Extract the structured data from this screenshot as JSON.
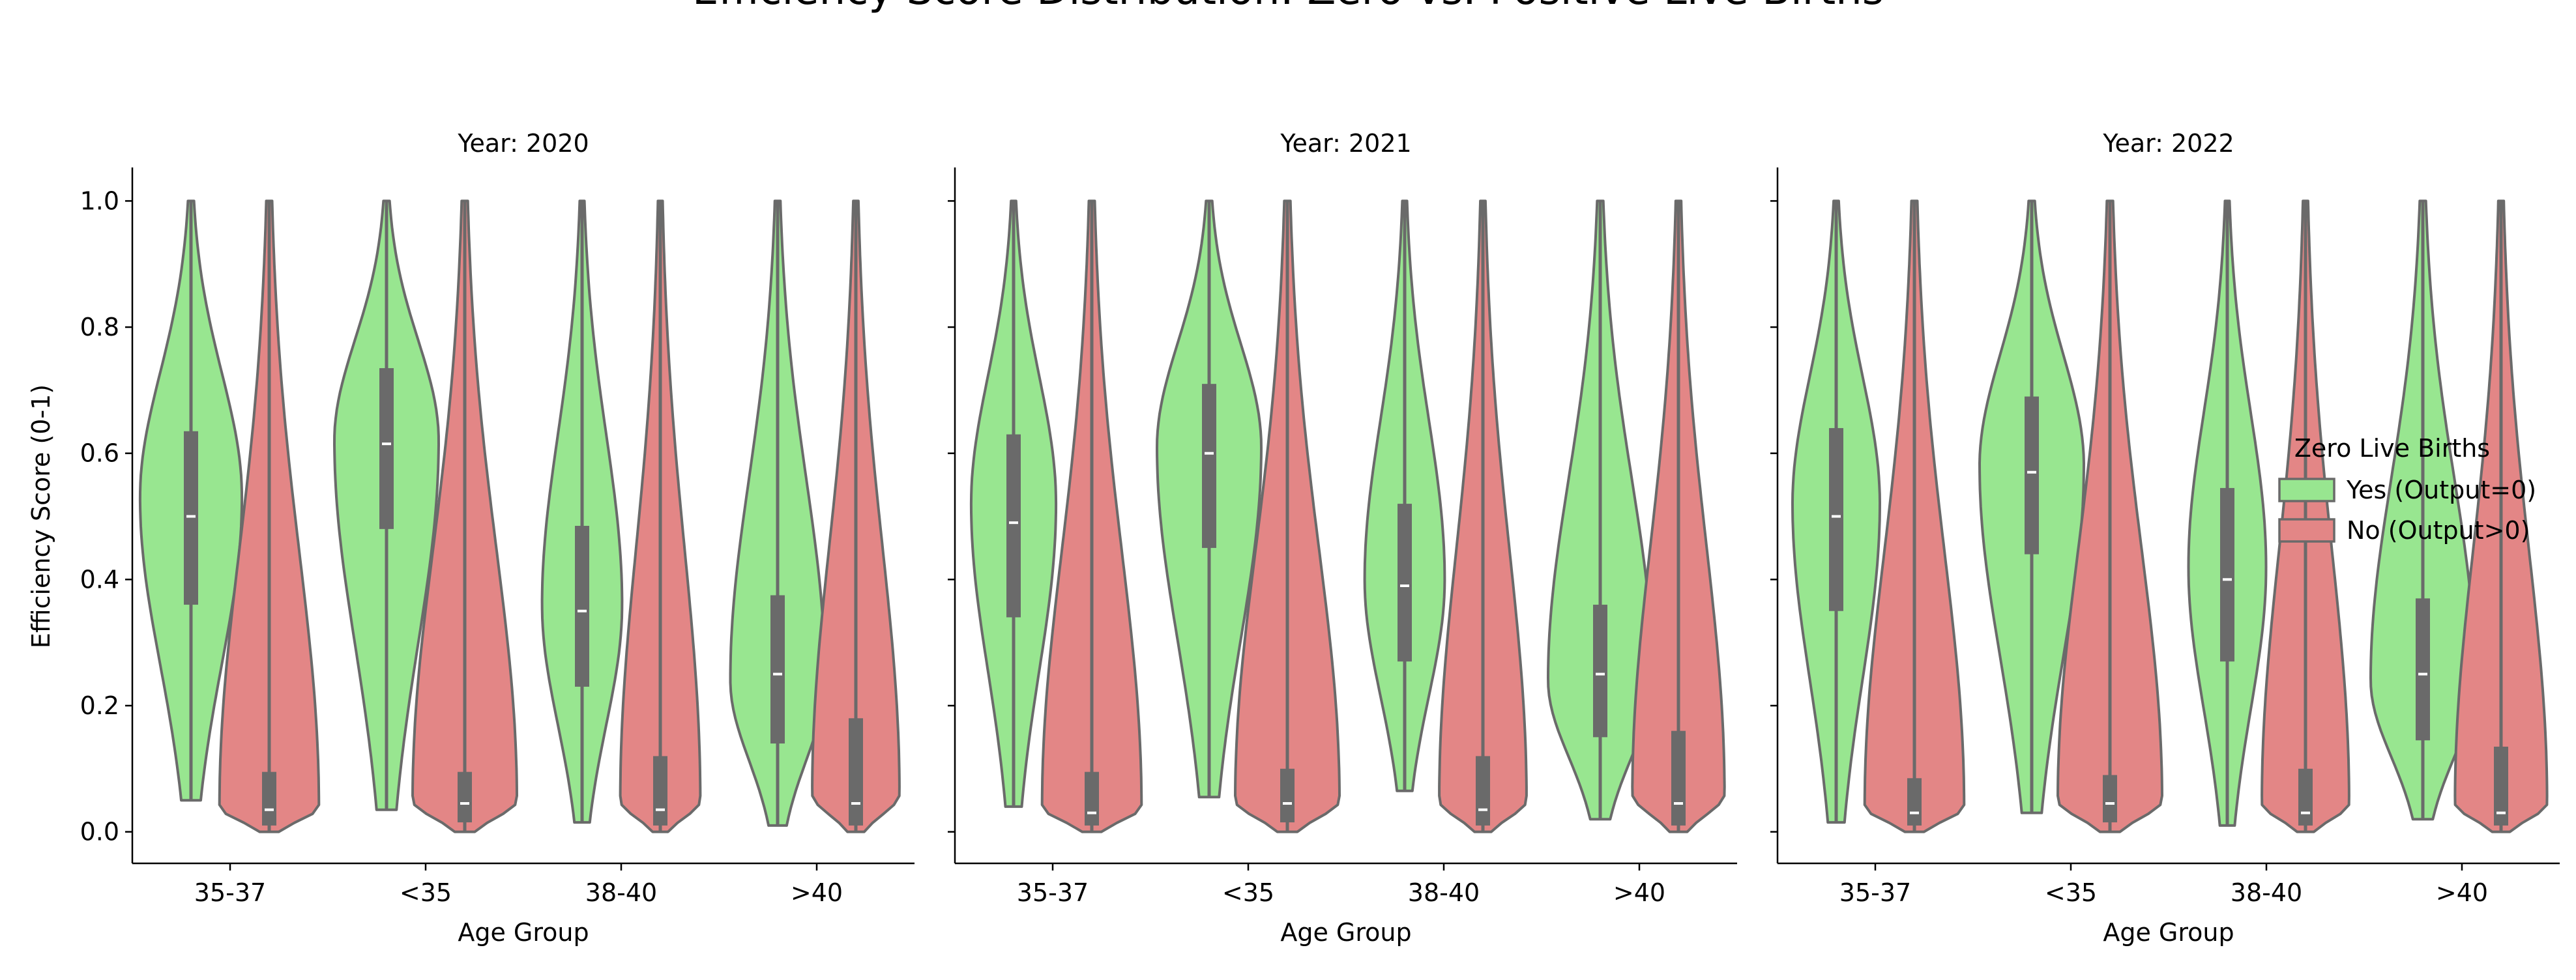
{
  "title": "Efficiency Score Distribution: Zero vs. Positive Live Births",
  "colors": {
    "yes": "#98e690",
    "no": "#e38686",
    "edge": "#6a6a6a",
    "median": "#ffffff"
  },
  "legend": {
    "title": "Zero Live Births",
    "placement": "right",
    "entries": [
      {
        "label": "Yes (Output=0)",
        "color": "#98e690"
      },
      {
        "label": "No (Output>0)",
        "color": "#e38686"
      }
    ]
  },
  "chart_data": {
    "type": "violin",
    "ylabel": "Efficiency Score (0-1)",
    "xlabel": "Age Group",
    "ylim": [
      -0.05,
      1.05
    ],
    "yticks": [
      0.0,
      0.2,
      0.4,
      0.6,
      0.8,
      1.0
    ],
    "ytick_labels": [
      "0.0",
      "0.2",
      "0.4",
      "0.6",
      "0.8",
      "1.0"
    ],
    "categories": [
      "35-37",
      "<35",
      "38-40",
      ">40"
    ],
    "grid": false,
    "panels": [
      {
        "title": "Year: 2020",
        "series": [
          {
            "name": "Yes (Output=0)",
            "groups": [
              {
                "min": 0.05,
                "max": 1.0,
                "q1": 0.36,
                "median": 0.5,
                "q3": 0.635,
                "mode": 0.53,
                "width": 0.84
              },
              {
                "min": 0.035,
                "max": 1.0,
                "q1": 0.48,
                "median": 0.615,
                "q3": 0.735,
                "mode": 0.62,
                "width": 0.86
              },
              {
                "min": 0.015,
                "max": 1.0,
                "q1": 0.23,
                "median": 0.35,
                "q3": 0.485,
                "mode": 0.36,
                "width": 0.66
              },
              {
                "min": 0.01,
                "max": 1.0,
                "q1": 0.14,
                "median": 0.25,
                "q3": 0.375,
                "mode": 0.24,
                "width": 0.78
              }
            ]
          },
          {
            "name": "No (Output>0)",
            "groups": [
              {
                "min": 0.0,
                "max": 1.0,
                "q1": 0.01,
                "median": 0.035,
                "q3": 0.095,
                "mode": 0.04,
                "width": 0.82
              },
              {
                "min": 0.0,
                "max": 1.0,
                "q1": 0.015,
                "median": 0.045,
                "q3": 0.095,
                "mode": 0.05,
                "width": 0.86
              },
              {
                "min": 0.0,
                "max": 1.0,
                "q1": 0.01,
                "median": 0.035,
                "q3": 0.12,
                "mode": 0.05,
                "width": 0.66
              },
              {
                "min": 0.0,
                "max": 1.0,
                "q1": 0.01,
                "median": 0.045,
                "q3": 0.18,
                "mode": 0.06,
                "width": 0.72
              }
            ]
          }
        ]
      },
      {
        "title": "Year: 2021",
        "series": [
          {
            "name": "Yes (Output=0)",
            "groups": [
              {
                "min": 0.04,
                "max": 1.0,
                "q1": 0.34,
                "median": 0.49,
                "q3": 0.63,
                "mode": 0.52,
                "width": 0.7
              },
              {
                "min": 0.055,
                "max": 1.0,
                "q1": 0.45,
                "median": 0.6,
                "q3": 0.71,
                "mode": 0.61,
                "width": 0.86
              },
              {
                "min": 0.065,
                "max": 1.0,
                "q1": 0.27,
                "median": 0.39,
                "q3": 0.52,
                "mode": 0.4,
                "width": 0.66
              },
              {
                "min": 0.02,
                "max": 1.0,
                "q1": 0.15,
                "median": 0.25,
                "q3": 0.36,
                "mode": 0.24,
                "width": 0.86
              }
            ]
          },
          {
            "name": "No (Output>0)",
            "groups": [
              {
                "min": 0.0,
                "max": 1.0,
                "q1": 0.01,
                "median": 0.03,
                "q3": 0.095,
                "mode": 0.04,
                "width": 0.82
              },
              {
                "min": 0.0,
                "max": 1.0,
                "q1": 0.015,
                "median": 0.045,
                "q3": 0.1,
                "mode": 0.05,
                "width": 0.86
              },
              {
                "min": 0.0,
                "max": 1.0,
                "q1": 0.01,
                "median": 0.035,
                "q3": 0.12,
                "mode": 0.05,
                "width": 0.72
              },
              {
                "min": 0.0,
                "max": 1.0,
                "q1": 0.01,
                "median": 0.045,
                "q3": 0.16,
                "mode": 0.06,
                "width": 0.76
              }
            ]
          }
        ]
      },
      {
        "title": "Year: 2022",
        "series": [
          {
            "name": "Yes (Output=0)",
            "groups": [
              {
                "min": 0.015,
                "max": 1.0,
                "q1": 0.35,
                "median": 0.5,
                "q3": 0.64,
                "mode": 0.52,
                "width": 0.72
              },
              {
                "min": 0.03,
                "max": 1.0,
                "q1": 0.44,
                "median": 0.57,
                "q3": 0.69,
                "mode": 0.58,
                "width": 0.86
              },
              {
                "min": 0.01,
                "max": 1.0,
                "q1": 0.27,
                "median": 0.4,
                "q3": 0.545,
                "mode": 0.42,
                "width": 0.64
              },
              {
                "min": 0.02,
                "max": 1.0,
                "q1": 0.145,
                "median": 0.25,
                "q3": 0.37,
                "mode": 0.24,
                "width": 0.86
              }
            ]
          },
          {
            "name": "No (Output>0)",
            "groups": [
              {
                "min": 0.0,
                "max": 1.0,
                "q1": 0.01,
                "median": 0.03,
                "q3": 0.085,
                "mode": 0.04,
                "width": 0.82
              },
              {
                "min": 0.0,
                "max": 1.0,
                "q1": 0.015,
                "median": 0.045,
                "q3": 0.09,
                "mode": 0.05,
                "width": 0.86
              },
              {
                "min": 0.0,
                "max": 1.0,
                "q1": 0.01,
                "median": 0.03,
                "q3": 0.1,
                "mode": 0.045,
                "width": 0.72
              },
              {
                "min": 0.0,
                "max": 1.0,
                "q1": 0.01,
                "median": 0.03,
                "q3": 0.135,
                "mode": 0.045,
                "width": 0.76
              }
            ]
          }
        ]
      }
    ]
  }
}
